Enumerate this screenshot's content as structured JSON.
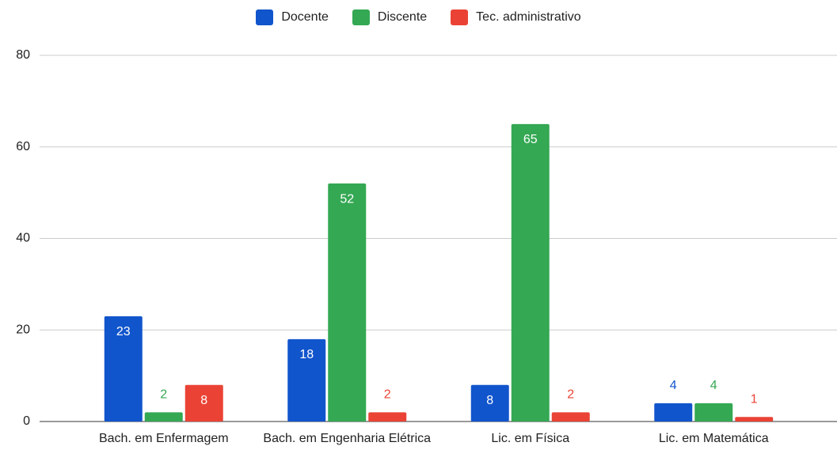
{
  "chart_data": {
    "type": "bar",
    "categories": [
      "Bach. em Enfermagem",
      "Bach. em Engenharia Elétrica",
      "Lic. em Física",
      "Lic. em Matemática"
    ],
    "series": [
      {
        "name": "Docente",
        "color": "#1155cc",
        "values": [
          23,
          18,
          8,
          4
        ]
      },
      {
        "name": "Discente",
        "color": "#34a853",
        "values": [
          2,
          52,
          65,
          4
        ]
      },
      {
        "name": "Tec. administrativo",
        "color": "#ea4335",
        "values": [
          8,
          2,
          2,
          1
        ]
      }
    ],
    "ylim": [
      0,
      80
    ],
    "yticks": [
      0,
      20,
      40,
      60,
      80
    ],
    "grid": true,
    "legend": "top"
  }
}
